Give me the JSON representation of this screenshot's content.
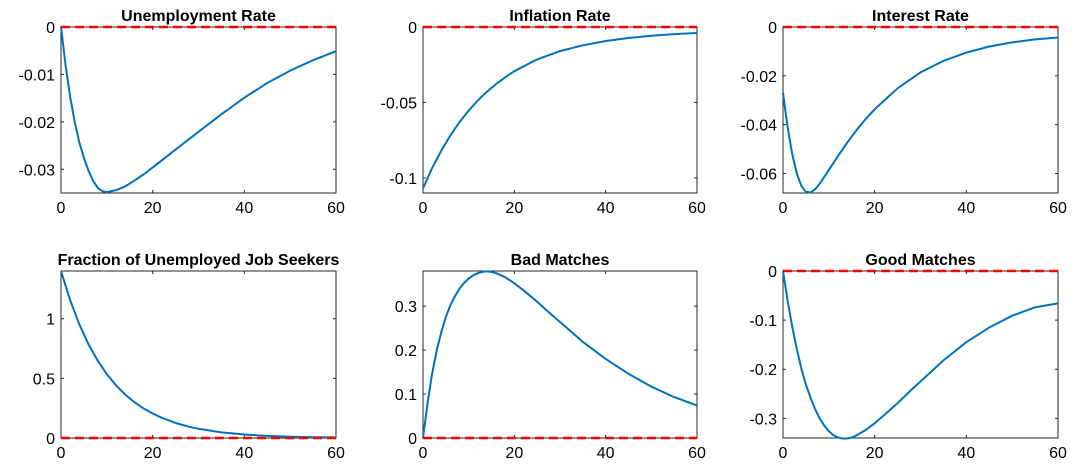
{
  "figure": {
    "background": "#ffffff",
    "axis_color": "#262626",
    "line_color": "#0072bd",
    "zero_line_color": "#ff0000"
  },
  "chart_data": [
    {
      "type": "line",
      "title": "Unemployment Rate",
      "xlim": [
        0,
        60
      ],
      "ylim": [
        -0.035,
        0
      ],
      "xticks": [
        0,
        20,
        40,
        60
      ],
      "yticks": [
        0,
        -0.01,
        -0.02,
        -0.03
      ],
      "ytick_labels": [
        "0",
        "-0.01",
        "-0.02",
        "-0.03"
      ],
      "series": [
        {
          "x": [
            0,
            1,
            2,
            3,
            4,
            5,
            6,
            7,
            8,
            9,
            10,
            12,
            14,
            16,
            18,
            20,
            22,
            24,
            26,
            28,
            30,
            35,
            40,
            45,
            50,
            55,
            60
          ],
          "y": [
            0,
            -0.0081,
            -0.0148,
            -0.0201,
            -0.0243,
            -0.0276,
            -0.0303,
            -0.0324,
            -0.0339,
            -0.0346,
            -0.0348,
            -0.0344,
            -0.0336,
            -0.0324,
            -0.0311,
            -0.0296,
            -0.0281,
            -0.0266,
            -0.0251,
            -0.0236,
            -0.0221,
            -0.0184,
            -0.0149,
            -0.0118,
            -0.0092,
            -0.007,
            -0.0051
          ]
        }
      ],
      "zero_line": 0
    },
    {
      "type": "line",
      "title": "Inflation Rate",
      "xlim": [
        0,
        60
      ],
      "ylim": [
        -0.11,
        0
      ],
      "xticks": [
        0,
        20,
        40,
        60
      ],
      "yticks": [
        0,
        -0.05,
        -0.1
      ],
      "ytick_labels": [
        "0",
        "-0.05",
        "-0.1"
      ],
      "series": [
        {
          "x": [
            0,
            2,
            4,
            6,
            8,
            10,
            12,
            14,
            16,
            18,
            20,
            25,
            30,
            35,
            40,
            45,
            50,
            55,
            60
          ],
          "y": [
            -0.107,
            -0.0935,
            -0.0819,
            -0.0718,
            -0.063,
            -0.0554,
            -0.0487,
            -0.0429,
            -0.0378,
            -0.0333,
            -0.0293,
            -0.0215,
            -0.016,
            -0.0121,
            -0.0093,
            -0.0073,
            -0.0058,
            -0.0047,
            -0.004
          ]
        }
      ],
      "zero_line": 0
    },
    {
      "type": "line",
      "title": "Interest Rate",
      "xlim": [
        0,
        60
      ],
      "ylim": [
        -0.068,
        0
      ],
      "xticks": [
        0,
        20,
        40,
        60
      ],
      "yticks": [
        0,
        -0.02,
        -0.04,
        -0.06
      ],
      "ytick_labels": [
        "0",
        "-0.02",
        "-0.04",
        "-0.06"
      ],
      "series": [
        {
          "x": [
            0,
            1,
            2,
            3,
            4,
            5,
            6,
            7,
            8,
            9,
            10,
            12,
            14,
            16,
            18,
            20,
            25,
            30,
            35,
            40,
            45,
            50,
            55,
            60
          ],
          "y": [
            -0.027,
            -0.041,
            -0.052,
            -0.06,
            -0.065,
            -0.0675,
            -0.0678,
            -0.0665,
            -0.0642,
            -0.0614,
            -0.0586,
            -0.0529,
            -0.0474,
            -0.0424,
            -0.0378,
            -0.0337,
            -0.0251,
            -0.0186,
            -0.0139,
            -0.0105,
            -0.008,
            -0.0063,
            -0.0051,
            -0.0043
          ]
        }
      ],
      "zero_line": 0
    },
    {
      "type": "line",
      "title": "Fraction of Unemployed Job Seekers",
      "xlim": [
        0,
        60
      ],
      "ylim": [
        0,
        1.4
      ],
      "xticks": [
        0,
        20,
        40,
        60
      ],
      "yticks": [
        0,
        0.5,
        1
      ],
      "ytick_labels": [
        "0",
        "0.5",
        "1"
      ],
      "series": [
        {
          "x": [
            0,
            2,
            4,
            6,
            8,
            10,
            12,
            14,
            16,
            18,
            20,
            22,
            25,
            28,
            30,
            35,
            40,
            45,
            50,
            55,
            60
          ],
          "y": [
            1.4,
            1.155,
            0.953,
            0.786,
            0.649,
            0.535,
            0.442,
            0.364,
            0.301,
            0.248,
            0.205,
            0.169,
            0.126,
            0.094,
            0.077,
            0.047,
            0.029,
            0.018,
            0.011,
            0.007,
            0.005
          ]
        }
      ],
      "zero_line": 0
    },
    {
      "type": "line",
      "title": "Bad Matches",
      "xlim": [
        0,
        60
      ],
      "ylim": [
        0,
        0.38
      ],
      "xticks": [
        0,
        20,
        40,
        60
      ],
      "yticks": [
        0,
        0.1,
        0.2,
        0.3
      ],
      "ytick_labels": [
        "0",
        "0.1",
        "0.2",
        "0.3"
      ],
      "series": [
        {
          "x": [
            0,
            1,
            2,
            3,
            4,
            5,
            6,
            7,
            8,
            9,
            10,
            11,
            12,
            13,
            14,
            15,
            16,
            18,
            20,
            22,
            25,
            28,
            30,
            35,
            40,
            45,
            50,
            55,
            60
          ],
          "y": [
            0,
            0.08,
            0.146,
            0.199,
            0.241,
            0.275,
            0.302,
            0.323,
            0.34,
            0.353,
            0.363,
            0.37,
            0.375,
            0.378,
            0.379,
            0.378,
            0.375,
            0.366,
            0.352,
            0.336,
            0.31,
            0.282,
            0.264,
            0.219,
            0.18,
            0.146,
            0.117,
            0.093,
            0.074
          ]
        }
      ],
      "zero_line": 0
    },
    {
      "type": "line",
      "title": "Good Matches",
      "xlim": [
        0,
        60
      ],
      "ylim": [
        -0.34,
        0
      ],
      "xticks": [
        0,
        20,
        40,
        60
      ],
      "yticks": [
        0,
        -0.1,
        -0.2,
        -0.3
      ],
      "ytick_labels": [
        "0",
        "-0.1",
        "-0.2",
        "-0.3"
      ],
      "series": [
        {
          "x": [
            0,
            1,
            2,
            3,
            4,
            5,
            6,
            7,
            8,
            9,
            10,
            11,
            12,
            13,
            14,
            15,
            16,
            18,
            20,
            22,
            25,
            28,
            30,
            35,
            40,
            45,
            50,
            55,
            60
          ],
          "y": [
            0,
            -0.06,
            -0.113,
            -0.159,
            -0.198,
            -0.231,
            -0.258,
            -0.281,
            -0.3,
            -0.315,
            -0.326,
            -0.334,
            -0.339,
            -0.341,
            -0.341,
            -0.339,
            -0.335,
            -0.324,
            -0.31,
            -0.294,
            -0.269,
            -0.242,
            -0.225,
            -0.182,
            -0.145,
            -0.115,
            -0.091,
            -0.074,
            -0.066
          ]
        }
      ],
      "zero_line": 0
    }
  ]
}
